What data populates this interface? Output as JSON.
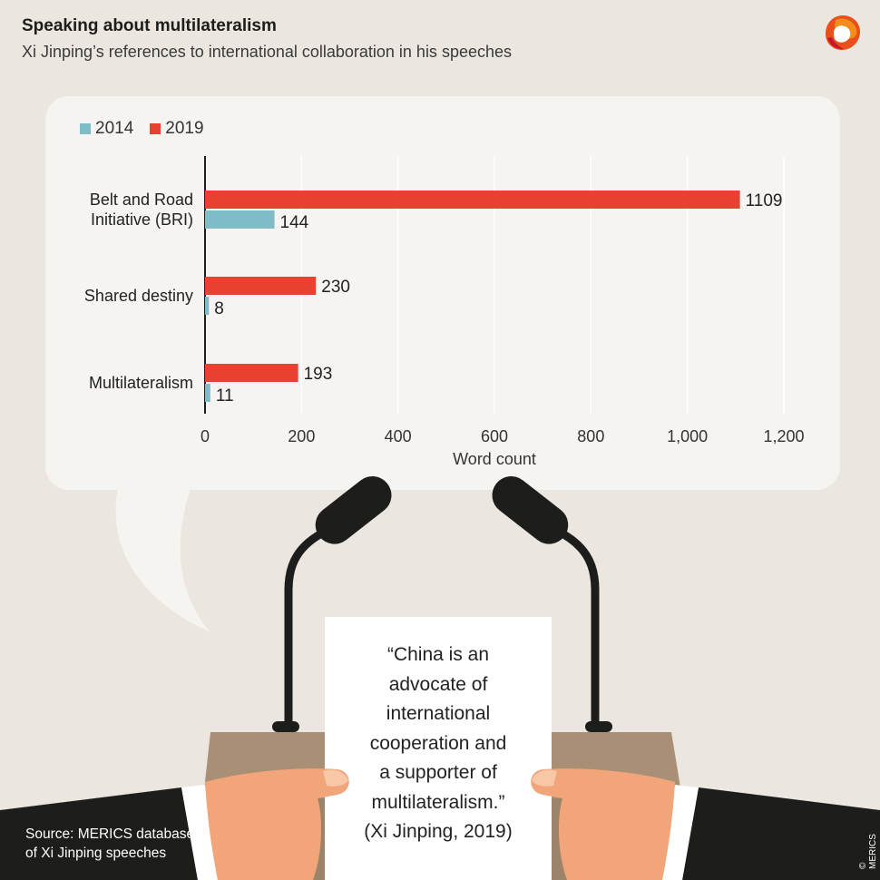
{
  "header": {
    "title": "Speaking about multilateralism",
    "subtitle": "Xi Jinping’s references to international collaboration in his speeches"
  },
  "logo": {
    "icon": "merics-logo-icon",
    "colors": [
      "#e94e1b",
      "#f28c1d",
      "#c7162b"
    ]
  },
  "colors": {
    "series_2014": "#7fbcc8",
    "series_2019": "#e84131",
    "background": "#ebe6df",
    "bubble": "#f6f4f0",
    "podium": "#a88f75",
    "skin": "#f2a579",
    "suit": "#1d1d1b"
  },
  "chart_data": {
    "type": "bar",
    "orientation": "horizontal",
    "categories": [
      "Belt and Road Initiative (BRI)",
      "Shared destiny",
      "Multilateralism"
    ],
    "category_lines": [
      [
        "Belt and Road",
        "Initiative (BRI)"
      ],
      [
        "Shared destiny"
      ],
      [
        "Multilateralism"
      ]
    ],
    "series": [
      {
        "name": "2019",
        "values": [
          1109,
          230,
          193
        ]
      },
      {
        "name": "2014",
        "values": [
          144,
          8,
          11
        ]
      }
    ],
    "legend": [
      "2014",
      "2019"
    ],
    "xlabel": "Word count",
    "xlim": [
      0,
      1200
    ],
    "xticks": [
      0,
      200,
      400,
      600,
      800,
      1000,
      1200
    ],
    "xtick_labels": [
      "0",
      "200",
      "400",
      "600",
      "800",
      "1,000",
      "1,200"
    ],
    "grid": "vertical",
    "legend_position": "top-left"
  },
  "quote": {
    "lines": [
      "“China is an",
      "advocate of",
      "international",
      "cooperation and",
      "a supporter of",
      "multilateralism.”",
      "(Xi Jinping, 2019)"
    ]
  },
  "footer": {
    "source_line1": "Source: MERICS database",
    "source_line2": "of Xi Jinping speeches",
    "copyright": "© MERICS"
  }
}
